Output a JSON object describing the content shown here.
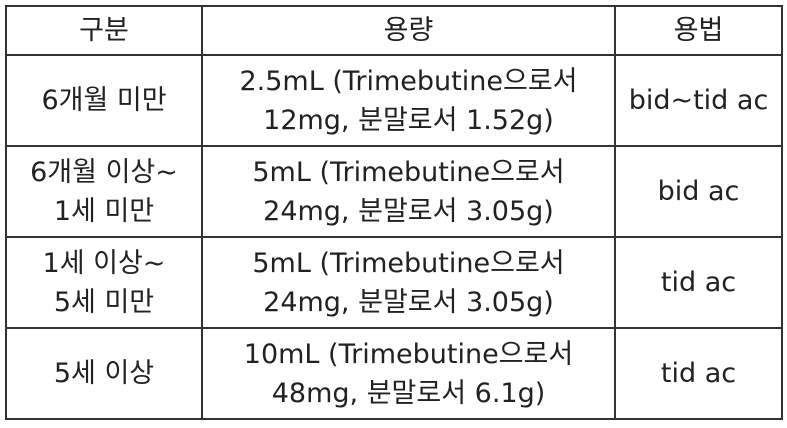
{
  "table": {
    "headers": [
      "구분",
      "용량",
      "용법"
    ],
    "rows": [
      {
        "category": [
          "6개월 미만"
        ],
        "dose": [
          "2.5mL (Trimebutine으로서",
          "12mg, 분말로서 1.52g)"
        ],
        "usage": "bid~tid ac"
      },
      {
        "category": [
          "6개월 이상~",
          "1세 미만"
        ],
        "dose": [
          "5mL (Trimebutine으로서",
          "24mg, 분말로서 3.05g)"
        ],
        "usage": "bid ac"
      },
      {
        "category": [
          "1세 이상~",
          "5세 미만"
        ],
        "dose": [
          "5mL (Trimebutine으로서",
          "24mg, 분말로서 3.05g)"
        ],
        "usage": "tid ac"
      },
      {
        "category": [
          "5세 이상"
        ],
        "dose": [
          "10mL (Trimebutine으로서",
          "48mg, 분말로서 6.1g)"
        ],
        "usage": "tid ac"
      }
    ]
  }
}
